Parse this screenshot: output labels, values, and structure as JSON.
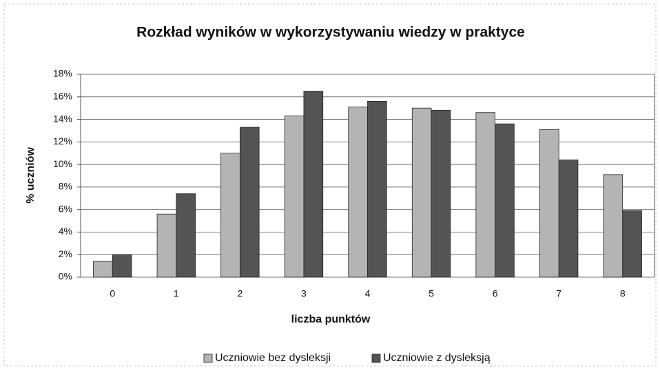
{
  "chart_data": {
    "type": "bar",
    "title": "Rozkład wyników w wykorzystywaniu wiedzy w praktyce",
    "x_label": "liczba punktów",
    "y_label": "% uczniów",
    "categories": [
      "0",
      "1",
      "2",
      "3",
      "4",
      "5",
      "6",
      "7",
      "8"
    ],
    "series": [
      {
        "name": "Uczniowie bez dysleksji",
        "color": "#b4b4b4",
        "values": [
          1.4,
          5.6,
          11.0,
          14.3,
          15.1,
          15.0,
          14.6,
          13.1,
          9.1
        ]
      },
      {
        "name": "Uczniowie z dysleksją",
        "color": "#545454",
        "values": [
          2.0,
          7.4,
          13.3,
          16.5,
          15.6,
          14.8,
          13.6,
          10.4,
          5.9
        ]
      }
    ],
    "ylim": [
      0,
      18
    ],
    "yticks": [
      {
        "value": 0,
        "label": "0%"
      },
      {
        "value": 2,
        "label": "2%"
      },
      {
        "value": 4,
        "label": "4%"
      },
      {
        "value": 6,
        "label": "6%"
      },
      {
        "value": 8,
        "label": "8%"
      },
      {
        "value": 10,
        "label": "10%"
      },
      {
        "value": 12,
        "label": "12%"
      },
      {
        "value": 14,
        "label": "14%"
      },
      {
        "value": 16,
        "label": "16%"
      },
      {
        "value": 18,
        "label": "18%"
      }
    ],
    "grid": true,
    "legend": "bottom"
  }
}
